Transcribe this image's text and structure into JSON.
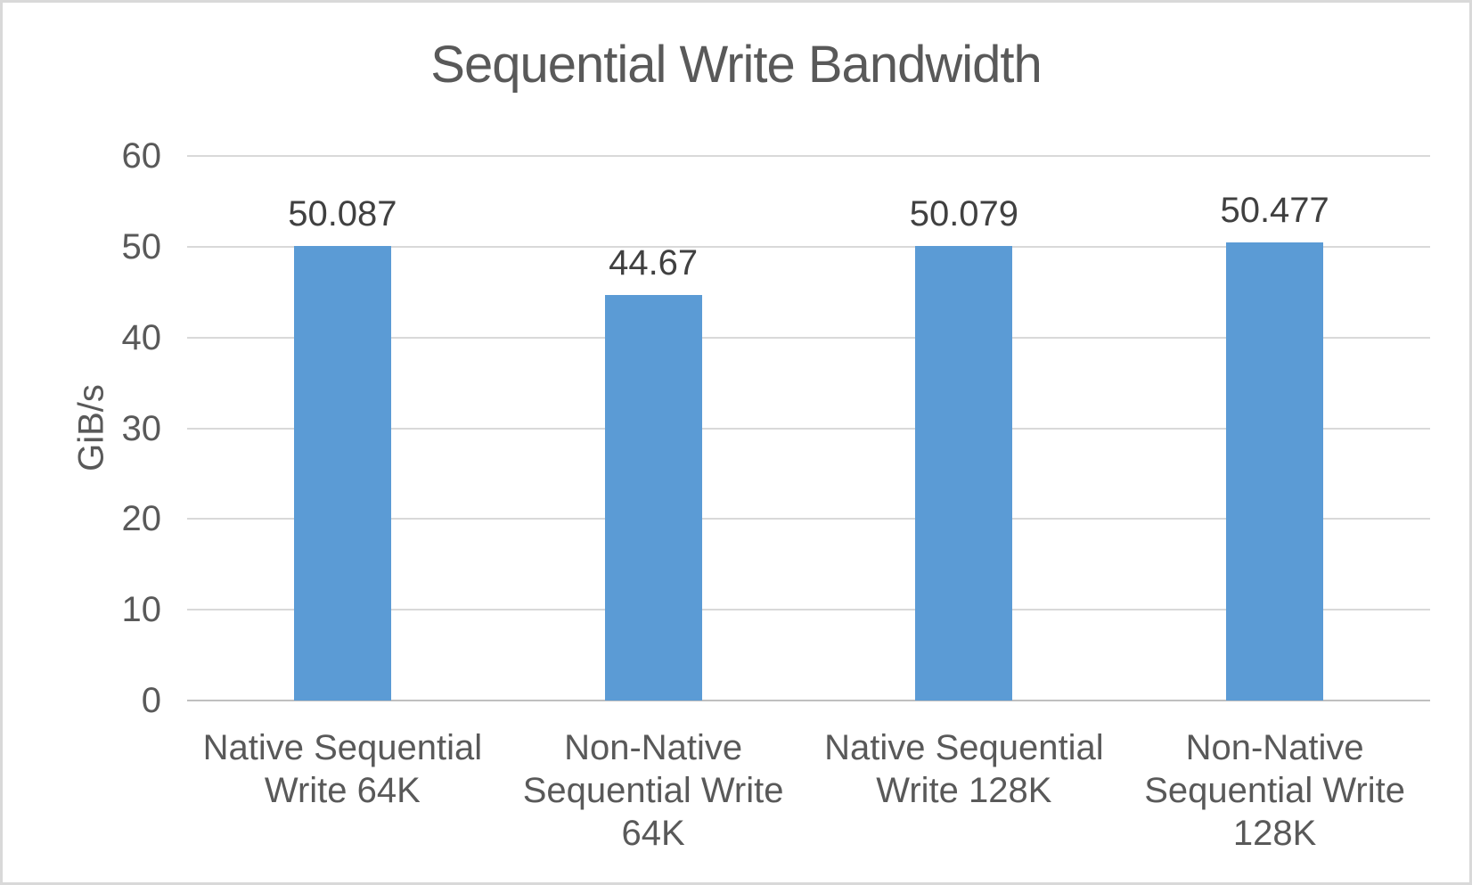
{
  "chart_data": {
    "type": "bar",
    "title": "Sequential Write Bandwidth",
    "ylabel": "GiB/s",
    "xlabel": "",
    "ylim": [
      0,
      60
    ],
    "yticks": [
      0,
      10,
      20,
      30,
      40,
      50,
      60
    ],
    "grid": true,
    "legend": false,
    "categories": [
      "Native Sequential Write 64K",
      "Non-Native Sequential Write 64K",
      "Native Sequential Write 128K",
      "Non-Native Sequential Write 128K"
    ],
    "category_label_lines": [
      [
        "Native Sequential",
        "Write 64K"
      ],
      [
        "Non-Native",
        "Sequential Write",
        "64K"
      ],
      [
        "Native Sequential",
        "Write 128K"
      ],
      [
        "Non-Native",
        "Sequential Write",
        "128K"
      ]
    ],
    "values": [
      50.087,
      44.67,
      50.079,
      50.477
    ],
    "data_labels": [
      "50.087",
      "44.67",
      "50.079",
      "50.477"
    ],
    "colors": {
      "bar": "#5b9bd5",
      "gridline": "#d9d9d9",
      "axis_line": "#bfbfbf",
      "title_text": "#595959",
      "axis_text": "#595959",
      "data_label_text": "#404040",
      "background": "#ffffff",
      "frame_border": "#d9d9d9"
    }
  }
}
